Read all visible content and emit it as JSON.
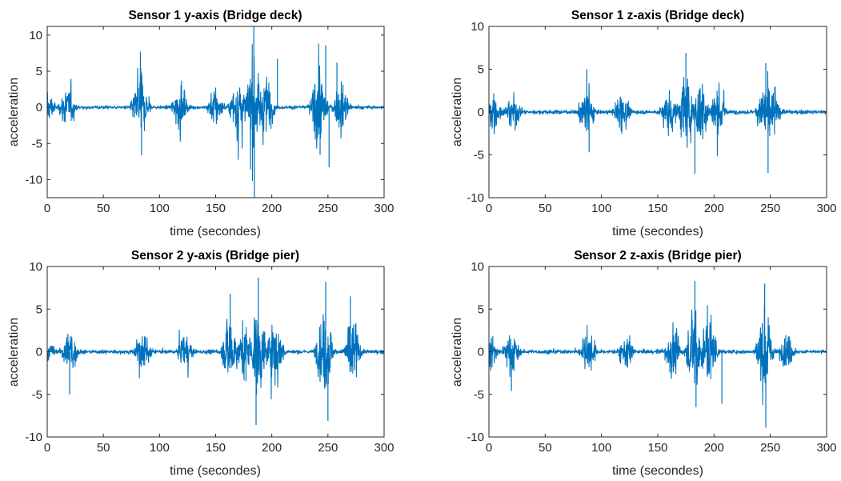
{
  "chart_data": [
    {
      "type": "line",
      "title": "Sensor 1 y-axis (Bridge deck)",
      "xlabel": "time (secondes)",
      "ylabel": "acceleration",
      "xlim": [
        0,
        300
      ],
      "ylim": [
        -12.5,
        11.2
      ],
      "xticks": [
        0,
        50,
        100,
        150,
        200,
        250,
        300
      ],
      "yticks": [
        -10,
        -5,
        0,
        5,
        10
      ],
      "grid": false,
      "color": "#0072BD",
      "bursts": [
        [
          0,
          3.5
        ],
        [
          18,
          4.5
        ],
        [
          83,
          7.7
        ],
        [
          118,
          4.5
        ],
        [
          150,
          4.5
        ],
        [
          170,
          6.8
        ],
        [
          184,
          11.2
        ],
        [
          195,
          6.7
        ],
        [
          242,
          8.6
        ],
        [
          262,
          5.5
        ]
      ],
      "spikes": [
        [
          83,
          7.7
        ],
        [
          84,
          -6.6
        ],
        [
          184,
          11.2
        ],
        [
          184.5,
          -12.5
        ],
        [
          248,
          8.6
        ],
        [
          251,
          -8.3
        ],
        [
          243,
          -6.6
        ],
        [
          205,
          6.7
        ],
        [
          258,
          6.2
        ]
      ]
    },
    {
      "type": "line",
      "title": "Sensor 1 z-axis (Bridge deck)",
      "xlabel": "time (secondes)",
      "ylabel": "acceleration",
      "xlim": [
        0,
        300
      ],
      "ylim": [
        -10,
        10
      ],
      "xticks": [
        0,
        50,
        100,
        150,
        200,
        250,
        300
      ],
      "yticks": [
        -10,
        -5,
        0,
        5,
        10
      ],
      "grid": false,
      "color": "#0072BD",
      "bursts": [
        [
          3,
          4.2
        ],
        [
          21,
          3.5
        ],
        [
          87,
          5.0
        ],
        [
          118,
          3.5
        ],
        [
          160,
          4.5
        ],
        [
          175,
          6.9
        ],
        [
          188,
          6.5
        ],
        [
          203,
          5.0
        ],
        [
          246,
          5.7
        ],
        [
          252,
          4.0
        ]
      ],
      "spikes": [
        [
          87,
          5.0
        ],
        [
          175,
          6.9
        ],
        [
          183,
          -7.2
        ],
        [
          246,
          5.7
        ],
        [
          248,
          -7.1
        ],
        [
          89,
          -4.7
        ]
      ]
    },
    {
      "type": "line",
      "title": "Sensor 2 y-axis (Bridge pier)",
      "xlabel": "time (secondes)",
      "ylabel": "acceleration",
      "xlim": [
        0,
        300
      ],
      "ylim": [
        -10,
        10
      ],
      "xticks": [
        0,
        50,
        100,
        150,
        200,
        250,
        300
      ],
      "yticks": [
        -10,
        -5,
        0,
        5,
        10
      ],
      "grid": false,
      "color": "#0072BD",
      "bursts": [
        [
          2,
          1.5
        ],
        [
          20,
          5.0
        ],
        [
          85,
          4.0
        ],
        [
          123,
          3.0
        ],
        [
          163,
          6.5
        ],
        [
          176,
          5.5
        ],
        [
          188,
          8.7
        ],
        [
          203,
          6.5
        ],
        [
          247,
          8.2
        ],
        [
          272,
          6.5
        ]
      ],
      "spikes": [
        [
          188,
          8.7
        ],
        [
          186,
          -8.6
        ],
        [
          248,
          8.2
        ],
        [
          250,
          -8.1
        ],
        [
          270,
          6.5
        ],
        [
          163,
          6.8
        ],
        [
          20,
          -5.0
        ]
      ]
    },
    {
      "type": "line",
      "title": "Sensor 2 z-axis (Bridge pier)",
      "xlabel": "time (secondes)",
      "ylabel": "acceleration",
      "xlim": [
        0,
        300
      ],
      "ylim": [
        -10,
        10
      ],
      "xticks": [
        0,
        50,
        100,
        150,
        200,
        250,
        300
      ],
      "yticks": [
        -10,
        -5,
        0,
        5,
        10
      ],
      "grid": false,
      "color": "#0072BD",
      "bursts": [
        [
          2,
          2.5
        ],
        [
          20,
          4.0
        ],
        [
          88,
          3.8
        ],
        [
          122,
          3.0
        ],
        [
          163,
          5.0
        ],
        [
          183,
          8.3
        ],
        [
          195,
          7.0
        ],
        [
          245,
          8.0
        ],
        [
          265,
          3.0
        ]
      ],
      "spikes": [
        [
          183,
          8.3
        ],
        [
          245,
          8.0
        ],
        [
          246,
          -8.9
        ],
        [
          184,
          -6.5
        ],
        [
          207,
          -6.1
        ],
        [
          20,
          -4.6
        ]
      ]
    }
  ]
}
